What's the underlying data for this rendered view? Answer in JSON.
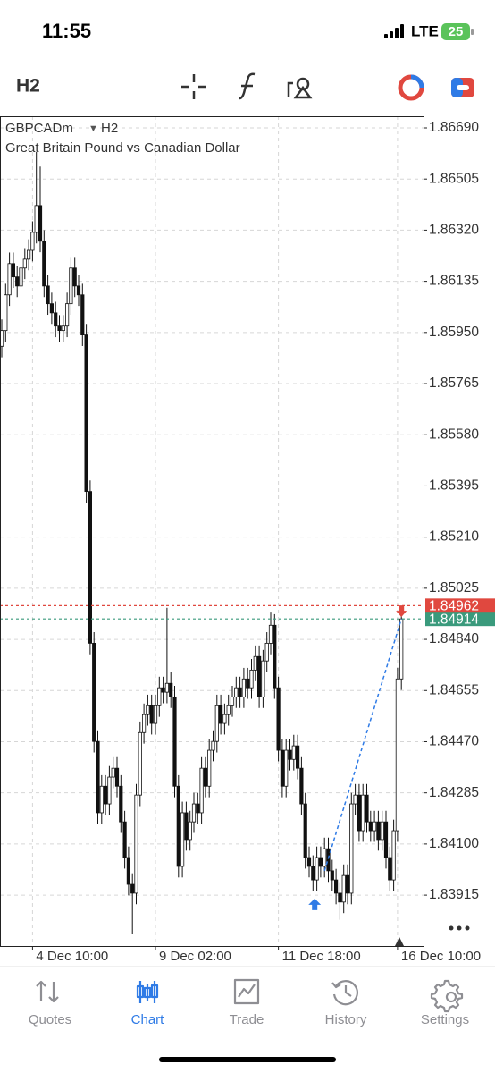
{
  "status_bar": {
    "time": "11:55",
    "network": "LTE",
    "battery": "25"
  },
  "toolbar": {
    "timeframe": "H2"
  },
  "chart_data": {
    "type": "candlestick",
    "symbol": "GBPCADm",
    "timeframe": "H2",
    "description": "Great Britain Pound vs Canadian Dollar",
    "categories": [
      null,
      null,
      null,
      null,
      null,
      null,
      null,
      null,
      "4 Dec 10:00",
      null,
      null,
      null,
      null,
      null,
      null,
      null,
      null,
      null,
      null,
      null,
      null,
      null,
      null,
      null,
      null,
      null,
      null,
      null,
      null,
      null,
      null,
      null,
      null,
      null,
      null,
      null,
      null,
      null,
      null,
      null,
      "9 Dec 02:00",
      null,
      null,
      null,
      null,
      null,
      null,
      null,
      null,
      null,
      null,
      null,
      null,
      null,
      null,
      null,
      null,
      null,
      null,
      null,
      null,
      null,
      null,
      null,
      null,
      null,
      null,
      null,
      null,
      null,
      null,
      null,
      "11 Dec 18:00",
      null,
      null,
      null,
      null,
      null,
      null,
      null,
      null,
      null,
      null,
      null,
      null,
      null,
      null,
      null,
      null,
      null,
      null,
      null,
      null,
      null,
      null,
      null,
      null,
      null,
      null,
      null,
      null,
      null,
      null,
      "16 Dec 10:00",
      null
    ],
    "open": [
      1.859,
      1.85957,
      1.86086,
      1.86199,
      1.86151,
      1.86118,
      1.86183,
      1.86215,
      1.86247,
      1.86312,
      1.86409,
      1.8628,
      1.86118,
      1.86054,
      1.86021,
      1.85973,
      1.85957,
      1.85973,
      1.86054,
      1.86183,
      1.86118,
      1.86086,
      1.85941,
      1.85375,
      1.84826,
      1.84471,
      1.84213,
      1.84309,
      1.84245,
      1.84342,
      1.84374,
      1.84309,
      1.8418,
      1.84051,
      1.83954,
      1.83922,
      1.84277,
      1.84503,
      1.84568,
      1.846,
      1.84536,
      1.846,
      1.84665,
      1.84649,
      1.84681,
      1.84632,
      1.84309,
      1.84019,
      1.84213,
      1.84116,
      1.8418,
      1.84245,
      1.84213,
      1.84374,
      1.84309,
      1.84439,
      1.84471,
      1.846,
      1.84536,
      1.84568,
      1.846,
      1.84632,
      1.84665,
      1.84632,
      1.84697,
      1.84665,
      1.84729,
      1.84778,
      1.84632,
      1.84762,
      1.84826,
      1.84891,
      1.84665,
      1.84439,
      1.84309,
      1.84439,
      1.84406,
      1.84455,
      1.84374,
      1.84245,
      1.84051,
      1.84019,
      1.8397,
      1.84051,
      1.84019,
      1.84083,
      1.84003,
      1.8397,
      1.83922,
      1.8389,
      1.83986,
      1.83922,
      1.84245,
      1.84277,
      1.84148,
      1.84277,
      1.8418,
      1.84148,
      1.8418,
      1.84116,
      1.8418,
      1.84051,
      1.8397,
      1.84148,
      1.84697
    ],
    "high": [
      1.85997,
      1.86126,
      1.86239,
      1.86239,
      1.86191,
      1.86223,
      1.86255,
      1.86287,
      1.86352,
      1.86603,
      1.8655,
      1.8632,
      1.86158,
      1.86094,
      1.86061,
      1.86013,
      1.86013,
      1.86094,
      1.86223,
      1.86223,
      1.86158,
      1.86126,
      1.85981,
      1.85415,
      1.84866,
      1.84511,
      1.84349,
      1.84349,
      1.84382,
      1.84414,
      1.84414,
      1.84349,
      1.8422,
      1.84091,
      1.83994,
      1.84317,
      1.84543,
      1.84608,
      1.8464,
      1.8464,
      1.8464,
      1.84705,
      1.84705,
      1.84954,
      1.84721,
      1.84672,
      1.84349,
      1.84253,
      1.84253,
      1.8422,
      1.84285,
      1.84285,
      1.84414,
      1.84414,
      1.84479,
      1.84511,
      1.8464,
      1.8464,
      1.84608,
      1.8464,
      1.84672,
      1.84705,
      1.84705,
      1.84737,
      1.84737,
      1.84769,
      1.84818,
      1.84818,
      1.84802,
      1.84866,
      1.8494,
      1.84931,
      1.84705,
      1.84479,
      1.84479,
      1.84479,
      1.84495,
      1.84495,
      1.84414,
      1.84285,
      1.84091,
      1.84059,
      1.84091,
      1.84091,
      1.84123,
      1.84123,
      1.84043,
      1.8401,
      1.83962,
      1.84026,
      1.84026,
      1.84285,
      1.84317,
      1.84317,
      1.84317,
      1.84317,
      1.8422,
      1.8422,
      1.8422,
      1.8422,
      1.8422,
      1.84091,
      1.84188,
      1.84737,
      1.8493
    ],
    "low": [
      1.8586,
      1.85917,
      1.86046,
      1.86111,
      1.86078,
      1.86078,
      1.86143,
      1.86175,
      1.86207,
      1.86272,
      1.8624,
      1.86078,
      1.86014,
      1.85981,
      1.85933,
      1.85917,
      1.85917,
      1.85933,
      1.86014,
      1.86078,
      1.86046,
      1.85901,
      1.85335,
      1.84786,
      1.84431,
      1.84173,
      1.84173,
      1.84205,
      1.84205,
      1.84302,
      1.84269,
      1.8414,
      1.84011,
      1.83914,
      1.83773,
      1.83882,
      1.84237,
      1.84463,
      1.84528,
      1.84496,
      1.84496,
      1.8456,
      1.84609,
      1.84609,
      1.84592,
      1.84269,
      1.83979,
      1.83979,
      1.84076,
      1.84076,
      1.8414,
      1.84173,
      1.84173,
      1.84269,
      1.84269,
      1.84399,
      1.84431,
      1.84496,
      1.84496,
      1.84528,
      1.8456,
      1.84592,
      1.84592,
      1.84592,
      1.84625,
      1.84625,
      1.84689,
      1.84592,
      1.84592,
      1.84722,
      1.84786,
      1.84625,
      1.84399,
      1.84269,
      1.84269,
      1.84366,
      1.84366,
      1.84334,
      1.84205,
      1.84011,
      1.83979,
      1.8393,
      1.8393,
      1.83979,
      1.83979,
      1.83963,
      1.8393,
      1.83882,
      1.83826,
      1.8385,
      1.83882,
      1.83882,
      1.84205,
      1.84108,
      1.84108,
      1.8414,
      1.84108,
      1.84108,
      1.84076,
      1.84076,
      1.84011,
      1.8393,
      1.8393,
      1.84108,
      1.84657
    ],
    "close": [
      1.85957,
      1.86086,
      1.86199,
      1.86151,
      1.86118,
      1.86183,
      1.86215,
      1.86247,
      1.86312,
      1.86409,
      1.8628,
      1.86118,
      1.86054,
      1.86021,
      1.85973,
      1.85957,
      1.85973,
      1.86054,
      1.86183,
      1.86118,
      1.86086,
      1.85941,
      1.85375,
      1.84826,
      1.84471,
      1.84213,
      1.84309,
      1.84245,
      1.84342,
      1.84374,
      1.84309,
      1.8418,
      1.84051,
      1.83954,
      1.83922,
      1.84277,
      1.84503,
      1.84568,
      1.846,
      1.84536,
      1.846,
      1.84665,
      1.84649,
      1.84681,
      1.84632,
      1.84309,
      1.84019,
      1.84213,
      1.84116,
      1.8418,
      1.84245,
      1.84213,
      1.84374,
      1.84309,
      1.84439,
      1.84471,
      1.846,
      1.84536,
      1.84568,
      1.846,
      1.84632,
      1.84665,
      1.84632,
      1.84697,
      1.84665,
      1.84729,
      1.84778,
      1.84632,
      1.84762,
      1.84826,
      1.84891,
      1.84665,
      1.84439,
      1.84309,
      1.84439,
      1.84406,
      1.84455,
      1.84374,
      1.84245,
      1.84051,
      1.84019,
      1.8397,
      1.84051,
      1.84019,
      1.84083,
      1.84003,
      1.8397,
      1.83922,
      1.8389,
      1.83986,
      1.83922,
      1.84245,
      1.84277,
      1.84148,
      1.84277,
      1.8418,
      1.84148,
      1.8418,
      1.84116,
      1.8418,
      1.84051,
      1.8397,
      1.84148,
      1.84697,
      1.84914
    ],
    "ylim": [
      1.83731,
      1.86732
    ],
    "yticks": [
      {
        "value": 1.8669,
        "label": "1.86690"
      },
      1.86505,
      {
        "value": 1.8632,
        "label": "1.86320"
      },
      1.86135,
      {
        "value": 1.8595,
        "label": "1.85950"
      },
      1.85765,
      {
        "value": 1.8558,
        "label": "1.85580"
      },
      1.85395,
      {
        "value": 1.8521,
        "label": "1.85210"
      },
      1.85025,
      {
        "value": 1.8484,
        "label": "1.84840"
      },
      1.84655,
      {
        "value": 1.8447,
        "label": "1.84470"
      },
      1.84285,
      {
        "value": 1.841,
        "label": "1.84100"
      },
      1.83915
    ],
    "grid": true,
    "up_color": "#ffffff",
    "down_color": "#111111",
    "price_lines": [
      {
        "value": 1.84962,
        "color": "#e0483f"
      },
      {
        "value": 1.84914,
        "color": "#3a9a7c"
      }
    ],
    "trade": {
      "entry_bar": 84,
      "entry_price": 1.84003,
      "exit_bar": 104,
      "exit_price": 1.84914,
      "color": "#2f7be6",
      "exit_color": "#e0483f"
    }
  },
  "tab_bar": {
    "items": [
      "Quotes",
      "Chart",
      "Trade",
      "History",
      "Settings"
    ],
    "active": 1
  }
}
